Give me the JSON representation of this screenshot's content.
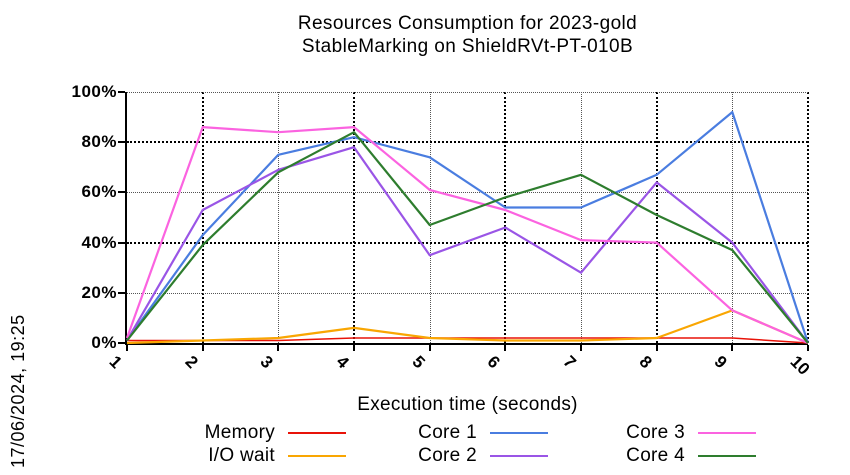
{
  "title": {
    "line1": "Resources Consumption for 2023-gold",
    "line2": "StableMarking on ShieldRVt-PT-010B"
  },
  "timestamp": "17/06/2024, 19:25",
  "chart_data": {
    "type": "line",
    "title": "Resources Consumption for 2023-gold StableMarking on ShieldRVt-PT-010B",
    "xlabel": "Execution time (seconds)",
    "ylabel": "",
    "xlim": [
      1,
      10
    ],
    "ylim": [
      0,
      100
    ],
    "grid": true,
    "legend_position": "bottom",
    "xticks": [
      1,
      2,
      3,
      4,
      5,
      6,
      7,
      8,
      9,
      10
    ],
    "xtick_labels": [
      "1",
      "2",
      "3",
      "4",
      "5",
      "6",
      "7",
      "8",
      "9",
      "10"
    ],
    "yticks": [
      0,
      20,
      40,
      60,
      80,
      100
    ],
    "ytick_labels": [
      "0%",
      "20%",
      "40%",
      "60%",
      "80%",
      "100%"
    ],
    "x": [
      1,
      2,
      3,
      4,
      5,
      6,
      7,
      8,
      9,
      10
    ],
    "series": [
      {
        "name": "Memory",
        "color": "#e81309",
        "values": [
          1,
          1,
          1,
          2,
          2,
          2,
          2,
          2,
          2,
          0
        ]
      },
      {
        "name": "I/O wait",
        "color": "#f9a602",
        "values": [
          0,
          1,
          2,
          6,
          2,
          1,
          1,
          2,
          13,
          0
        ]
      },
      {
        "name": "Core 1",
        "color": "#4a7de0",
        "values": [
          1,
          43,
          75,
          82,
          74,
          54,
          54,
          67,
          92,
          0
        ]
      },
      {
        "name": "Core 2",
        "color": "#9a55e6",
        "values": [
          1,
          53,
          69,
          78,
          35,
          46,
          28,
          64,
          40,
          0
        ]
      },
      {
        "name": "Core 3",
        "color": "#fb63e0",
        "values": [
          2,
          86,
          84,
          86,
          61,
          53,
          41,
          40,
          13,
          0
        ]
      },
      {
        "name": "Core 4",
        "color": "#2e7d2e",
        "values": [
          1,
          39,
          68,
          84,
          47,
          58,
          67,
          51,
          37,
          0
        ]
      }
    ]
  }
}
